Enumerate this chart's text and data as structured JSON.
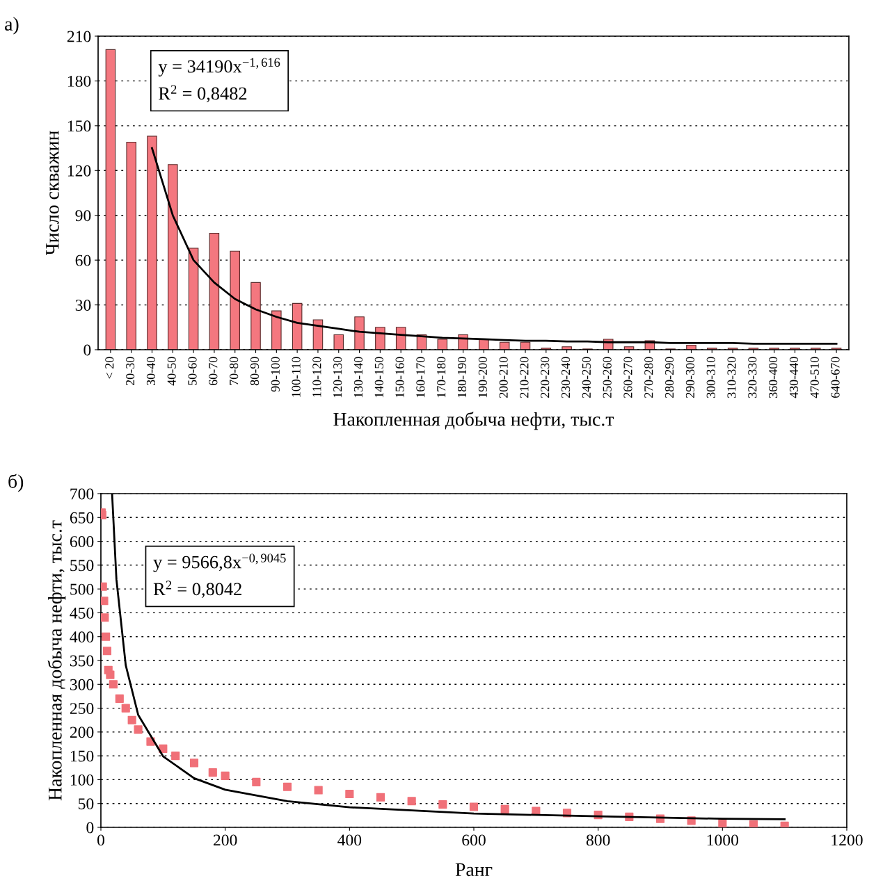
{
  "chart_data": [
    {
      "type": "bar",
      "title": "а)",
      "xlabel": "Накопленная добыча нефти, тыс.т",
      "ylabel": "Число скважин",
      "categories": [
        "< 20",
        "20-30",
        "30-40",
        "40-50",
        "50-60",
        "60-70",
        "70-80",
        "80-90",
        "90-100",
        "100-110",
        "110-120",
        "120-130",
        "130-140",
        "140-150",
        "150-160",
        "160-170",
        "170-180",
        "180-190",
        "190-200",
        "200-210",
        "210-220",
        "220-230",
        "230-240",
        "240-250",
        "250-260",
        "260-270",
        "270-280",
        "280-290",
        "290-300",
        "300-310",
        "310-320",
        "320-330",
        "360-400",
        "430-440",
        "470-510",
        "640-670"
      ],
      "series": [
        {
          "color": "#f4777f",
          "values": [
            201,
            139,
            143,
            124,
            68,
            78,
            66,
            45,
            26,
            31,
            20,
            10,
            22,
            15,
            15,
            10,
            7,
            10,
            7,
            5,
            5,
            1,
            2,
            0.5,
            7,
            2,
            6,
            0.5,
            3,
            1,
            1,
            1,
            1,
            1,
            1,
            1
          ]
        },
        {
          "type": "line",
          "color": "#000000",
          "values": [
            null,
            null,
            135,
            90,
            60,
            45,
            34,
            27,
            22,
            18,
            16,
            14,
            12,
            11,
            10,
            9,
            8,
            7.5,
            7,
            6.5,
            6,
            6,
            5.5,
            5.5,
            5,
            5,
            5,
            4.5,
            4.5,
            4.5,
            4.5,
            4,
            4,
            4,
            4,
            4
          ]
        }
      ],
      "ylim": [
        0,
        210
      ],
      "yticks": [
        0,
        30,
        60,
        90,
        120,
        150,
        180,
        210
      ],
      "grid": "y",
      "line_style": "solid",
      "annotations": [
        "y = 34190x$^{−1,616}$\nR$^{2}$ = 0,8482"
      ]
    },
    {
      "type": "scatter",
      "title": "б)",
      "xlabel": "Ранг",
      "ylabel": "Накопленная добыча нефти, тыс.т",
      "series": [
        {
          "color": "#f07078",
          "marker": "square",
          "x": [
            1,
            2,
            3,
            5,
            6,
            8,
            10,
            12,
            15,
            20,
            30,
            40,
            50,
            60,
            80,
            100,
            120,
            150,
            180,
            200,
            250,
            300,
            350,
            400,
            450,
            500,
            550,
            600,
            650,
            700,
            750,
            800,
            850,
            900,
            950,
            1000,
            1050,
            1100
          ],
          "values": [
            660,
            655,
            505,
            475,
            440,
            400,
            370,
            330,
            320,
            300,
            270,
            250,
            225,
            205,
            180,
            165,
            150,
            135,
            115,
            108,
            95,
            85,
            78,
            70,
            63,
            55,
            48,
            43,
            38,
            34,
            30,
            26,
            22,
            18,
            14,
            9,
            6,
            3
          ]
        },
        {
          "type": "line",
          "color": "#000000",
          "marker": "none",
          "x": [
            18,
            25,
            40,
            60,
            100,
            150,
            200,
            300,
            400,
            600,
            800,
            1000,
            1100
          ],
          "values": [
            700,
            520,
            340,
            236,
            149,
            103,
            79,
            55,
            42,
            29,
            23,
            18,
            17
          ]
        }
      ],
      "xlim": [
        0,
        1200
      ],
      "xticks": [
        0,
        200,
        400,
        600,
        800,
        1000,
        1200
      ],
      "ylim": [
        0,
        700
      ],
      "yticks": [
        0,
        50,
        100,
        150,
        200,
        250,
        300,
        350,
        400,
        450,
        500,
        550,
        600,
        650,
        700
      ],
      "grid": "y",
      "line_style": "solid",
      "annotations": [
        "y = 9566,8x$^{−0,9045}$\nR$^{2}$ = 0,8042"
      ]
    }
  ]
}
